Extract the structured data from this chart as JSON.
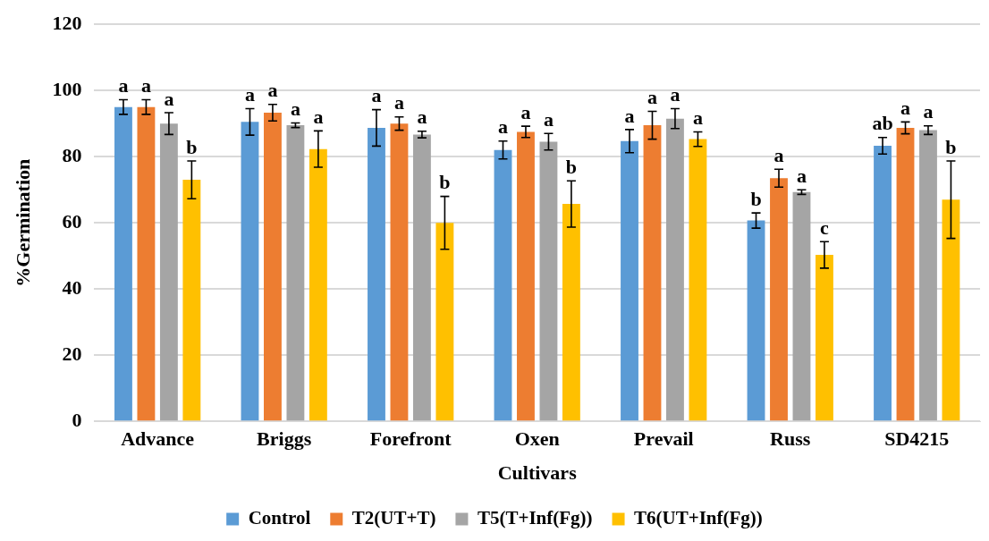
{
  "chart_data": {
    "type": "bar",
    "xlabel": "Cultivars",
    "ylabel": "%Germination",
    "categories": [
      "Advance",
      "Briggs",
      "Forefront",
      "Oxen",
      "Prevail",
      "Russ",
      "SD4215"
    ],
    "series": [
      {
        "name": "Control",
        "color": "#5b9bd5",
        "values": [
          95,
          90.5,
          88.7,
          82,
          84.7,
          60.7,
          83.3
        ],
        "errors": [
          2.2,
          4,
          5.5,
          2.7,
          3.5,
          2.3,
          2.5
        ]
      },
      {
        "name": "T2(UT+T)",
        "color": "#ed7d31",
        "values": [
          95,
          93.3,
          90,
          87.5,
          89.5,
          73.5,
          88.7
        ],
        "errors": [
          2.2,
          2.5,
          2,
          1.7,
          4.2,
          2.7,
          1.8
        ]
      },
      {
        "name": "T5(T+Inf(Fg))",
        "color": "#a5a5a5",
        "values": [
          90,
          89.5,
          86.7,
          84.5,
          91.5,
          69.3,
          88
        ],
        "errors": [
          3.3,
          0.7,
          1,
          2.5,
          3,
          0.7,
          1.3
        ]
      },
      {
        "name": "T6(UT+Inf(Fg))",
        "color": "#ffc000",
        "values": [
          73,
          82.3,
          60,
          65.7,
          85.3,
          50.3,
          67
        ],
        "errors": [
          5.7,
          5.5,
          8,
          7,
          2.2,
          4,
          11.7
        ]
      }
    ],
    "ylim": [
      0,
      120
    ],
    "yticks": [
      0,
      20,
      40,
      60,
      80,
      100,
      120
    ],
    "grid": "y",
    "legend": "bottom",
    "annotations": [
      "a",
      "a",
      "a",
      "b",
      "a",
      "a",
      "a",
      "a",
      "a",
      "a",
      "a",
      "b",
      "a",
      "a",
      "a",
      "b",
      "a",
      "a",
      "a",
      "a",
      "b",
      "a",
      "a",
      "c",
      "ab",
      "a",
      "a",
      "b"
    ]
  }
}
